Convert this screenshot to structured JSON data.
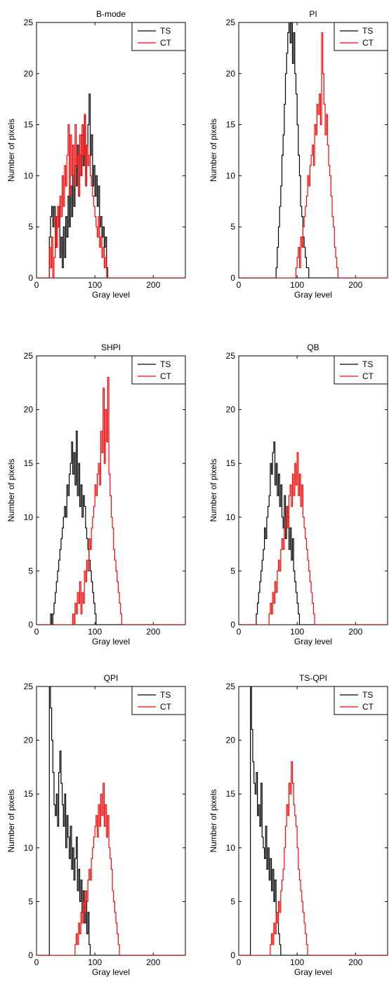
{
  "colors": {
    "TS": "#000000",
    "CT": "#ff0000"
  },
  "chart_data": [
    {
      "type": "line",
      "step": true,
      "title": "B-mode",
      "xlabel": "Gray level",
      "ylabel": "Number of pixels",
      "xlim": [
        0,
        255
      ],
      "ylim": [
        0,
        25
      ],
      "xticks": [
        0,
        100,
        200
      ],
      "yticks": [
        0,
        5,
        10,
        15,
        20,
        25
      ],
      "legend_position": "top-right",
      "series": [
        {
          "name": "TS",
          "color": "#000000",
          "step": 2,
          "x0": 20,
          "values": [
            0,
            4,
            6,
            7,
            5,
            7,
            3,
            6,
            5,
            7,
            2,
            4,
            1,
            5,
            2,
            6,
            4,
            8,
            5,
            9,
            6,
            10,
            7,
            11,
            9,
            13,
            8,
            12,
            10,
            14,
            11,
            16,
            9,
            13,
            15,
            18,
            12,
            14,
            9,
            11,
            8,
            10,
            7,
            9,
            5,
            6,
            4,
            5,
            3,
            4,
            1,
            0,
            0
          ]
        },
        {
          "name": "CT",
          "color": "#ff0000",
          "step": 2,
          "x0": 20,
          "values": [
            0,
            3,
            1,
            4,
            0,
            2,
            6,
            3,
            7,
            5,
            8,
            6,
            10,
            7,
            11,
            9,
            12,
            15,
            8,
            14,
            10,
            13,
            9,
            15,
            11,
            12,
            8,
            14,
            10,
            15,
            12,
            16,
            9,
            13,
            11,
            12,
            10,
            9,
            8,
            7,
            6,
            5,
            4,
            6,
            3,
            4,
            2,
            3,
            1,
            2,
            0,
            0
          ]
        }
      ]
    },
    {
      "type": "line",
      "step": true,
      "title": "PI",
      "xlabel": "Gray level",
      "ylabel": "Number of pixels",
      "xlim": [
        0,
        255
      ],
      "ylim": [
        0,
        25
      ],
      "xticks": [
        0,
        100,
        200
      ],
      "yticks": [
        0,
        5,
        10,
        15,
        20,
        25
      ],
      "legend_position": "top-right",
      "series": [
        {
          "name": "TS",
          "color": "#000000",
          "step": 2,
          "x0": 62,
          "values": [
            0,
            1,
            3,
            5,
            7,
            9,
            12,
            14,
            17,
            20,
            22,
            24,
            25,
            23,
            25,
            21,
            24,
            20,
            18,
            15,
            12,
            10,
            7,
            6,
            4,
            3,
            2,
            1,
            1,
            0,
            0
          ]
        },
        {
          "name": "CT",
          "color": "#ff0000",
          "step": 2,
          "x0": 96,
          "values": [
            0,
            1,
            2,
            3,
            1,
            4,
            3,
            5,
            6,
            7,
            8,
            10,
            9,
            11,
            12,
            13,
            11,
            15,
            14,
            17,
            16,
            18,
            15,
            24,
            20,
            17,
            14,
            16,
            13,
            11,
            10,
            8,
            6,
            5,
            3,
            2,
            1,
            0,
            0
          ]
        }
      ]
    },
    {
      "type": "line",
      "step": true,
      "title": "SHPI",
      "xlabel": "Gray level",
      "ylabel": "Number of pixels",
      "xlim": [
        0,
        255
      ],
      "ylim": [
        0,
        25
      ],
      "xticks": [
        0,
        100,
        200
      ],
      "yticks": [
        0,
        5,
        10,
        15,
        20,
        25
      ],
      "legend_position": "top-right",
      "series": [
        {
          "name": "TS",
          "color": "#000000",
          "step": 2,
          "x0": 22,
          "values": [
            0,
            1,
            0,
            1,
            2,
            3,
            4,
            5,
            6,
            7,
            8,
            9,
            10,
            11,
            10,
            13,
            12,
            14,
            15,
            17,
            14,
            16,
            13,
            18,
            12,
            15,
            11,
            13,
            10,
            12,
            11,
            9,
            8,
            7,
            6,
            5,
            4,
            3,
            2,
            1,
            0,
            0
          ]
        },
        {
          "name": "CT",
          "color": "#ff0000",
          "step": 2,
          "x0": 60,
          "values": [
            0,
            1,
            0,
            2,
            1,
            3,
            2,
            4,
            1,
            3,
            2,
            5,
            4,
            6,
            5,
            8,
            7,
            9,
            10,
            11,
            13,
            12,
            14,
            15,
            13,
            18,
            16,
            22,
            15,
            20,
            17,
            23,
            14,
            12,
            10,
            9,
            7,
            6,
            5,
            4,
            3,
            2,
            1,
            0,
            0
          ]
        }
      ]
    },
    {
      "type": "line",
      "step": true,
      "title": "QB",
      "xlabel": "Gray level",
      "ylabel": "Number of pixels",
      "xlim": [
        0,
        255
      ],
      "ylim": [
        0,
        25
      ],
      "xticks": [
        0,
        100,
        200
      ],
      "yticks": [
        0,
        5,
        10,
        15,
        20,
        25
      ],
      "legend_position": "top-right",
      "series": [
        {
          "name": "TS",
          "color": "#000000",
          "step": 2,
          "x0": 28,
          "values": [
            0,
            1,
            2,
            3,
            4,
            5,
            6,
            7,
            9,
            8,
            10,
            11,
            12,
            15,
            14,
            16,
            17,
            13,
            15,
            12,
            14,
            11,
            13,
            10,
            9,
            12,
            8,
            11,
            10,
            7,
            9,
            6,
            8,
            5,
            4,
            3,
            2,
            1,
            0,
            0
          ]
        },
        {
          "name": "CT",
          "color": "#ff0000",
          "step": 2,
          "x0": 50,
          "values": [
            0,
            1,
            2,
            1,
            3,
            2,
            4,
            3,
            5,
            6,
            5,
            7,
            8,
            7,
            9,
            10,
            11,
            9,
            12,
            13,
            11,
            14,
            12,
            15,
            13,
            16,
            12,
            14,
            11,
            13,
            10,
            9,
            8,
            7,
            6,
            5,
            4,
            3,
            2,
            1,
            0,
            0
          ]
        }
      ]
    },
    {
      "type": "line",
      "step": true,
      "title": "QPI",
      "xlabel": "Gray level",
      "ylabel": "Number of pixels",
      "xlim": [
        0,
        255
      ],
      "ylim": [
        0,
        25
      ],
      "xticks": [
        0,
        100,
        200
      ],
      "yticks": [
        0,
        5,
        10,
        15,
        20,
        25
      ],
      "legend_position": "top-right",
      "series": [
        {
          "name": "TS",
          "color": "#000000",
          "step": 2,
          "x0": 20,
          "values": [
            0,
            25,
            23,
            20,
            17,
            14,
            13,
            15,
            12,
            17,
            19,
            16,
            14,
            12,
            15,
            10,
            13,
            11,
            9,
            12,
            8,
            10,
            7,
            9,
            11,
            6,
            8,
            5,
            7,
            4,
            6,
            3,
            5,
            2,
            4,
            1,
            0,
            0
          ]
        },
        {
          "name": "CT",
          "color": "#ff0000",
          "step": 2,
          "x0": 64,
          "values": [
            0,
            1,
            2,
            1,
            3,
            2,
            4,
            3,
            5,
            4,
            6,
            5,
            7,
            8,
            7,
            9,
            10,
            11,
            12,
            13,
            11,
            14,
            12,
            15,
            13,
            16,
            12,
            14,
            11,
            13,
            10,
            9,
            8,
            6,
            5,
            4,
            3,
            2,
            1,
            0,
            0
          ]
        }
      ]
    },
    {
      "type": "line",
      "step": true,
      "title": "TS-QPI",
      "xlabel": "Gray level",
      "ylabel": "Number of pixels",
      "xlim": [
        0,
        255
      ],
      "ylim": [
        0,
        25
      ],
      "xticks": [
        0,
        100,
        200
      ],
      "yticks": [
        0,
        5,
        10,
        15,
        20,
        25
      ],
      "legend_position": "top-right",
      "series": [
        {
          "name": "TS",
          "color": "#000000",
          "step": 2,
          "x0": 18,
          "values": [
            0,
            25,
            21,
            18,
            16,
            15,
            17,
            13,
            14,
            12,
            16,
            11,
            10,
            9,
            12,
            8,
            10,
            7,
            9,
            6,
            8,
            5,
            7,
            4,
            3,
            2,
            1,
            0,
            0
          ]
        },
        {
          "name": "CT",
          "color": "#ff0000",
          "step": 2,
          "x0": 52,
          "values": [
            0,
            1,
            2,
            1,
            3,
            2,
            4,
            3,
            5,
            4,
            6,
            7,
            8,
            10,
            12,
            14,
            13,
            16,
            15,
            18,
            16,
            14,
            13,
            12,
            10,
            8,
            7,
            6,
            5,
            4,
            3,
            2,
            1,
            0,
            0
          ]
        }
      ]
    }
  ]
}
